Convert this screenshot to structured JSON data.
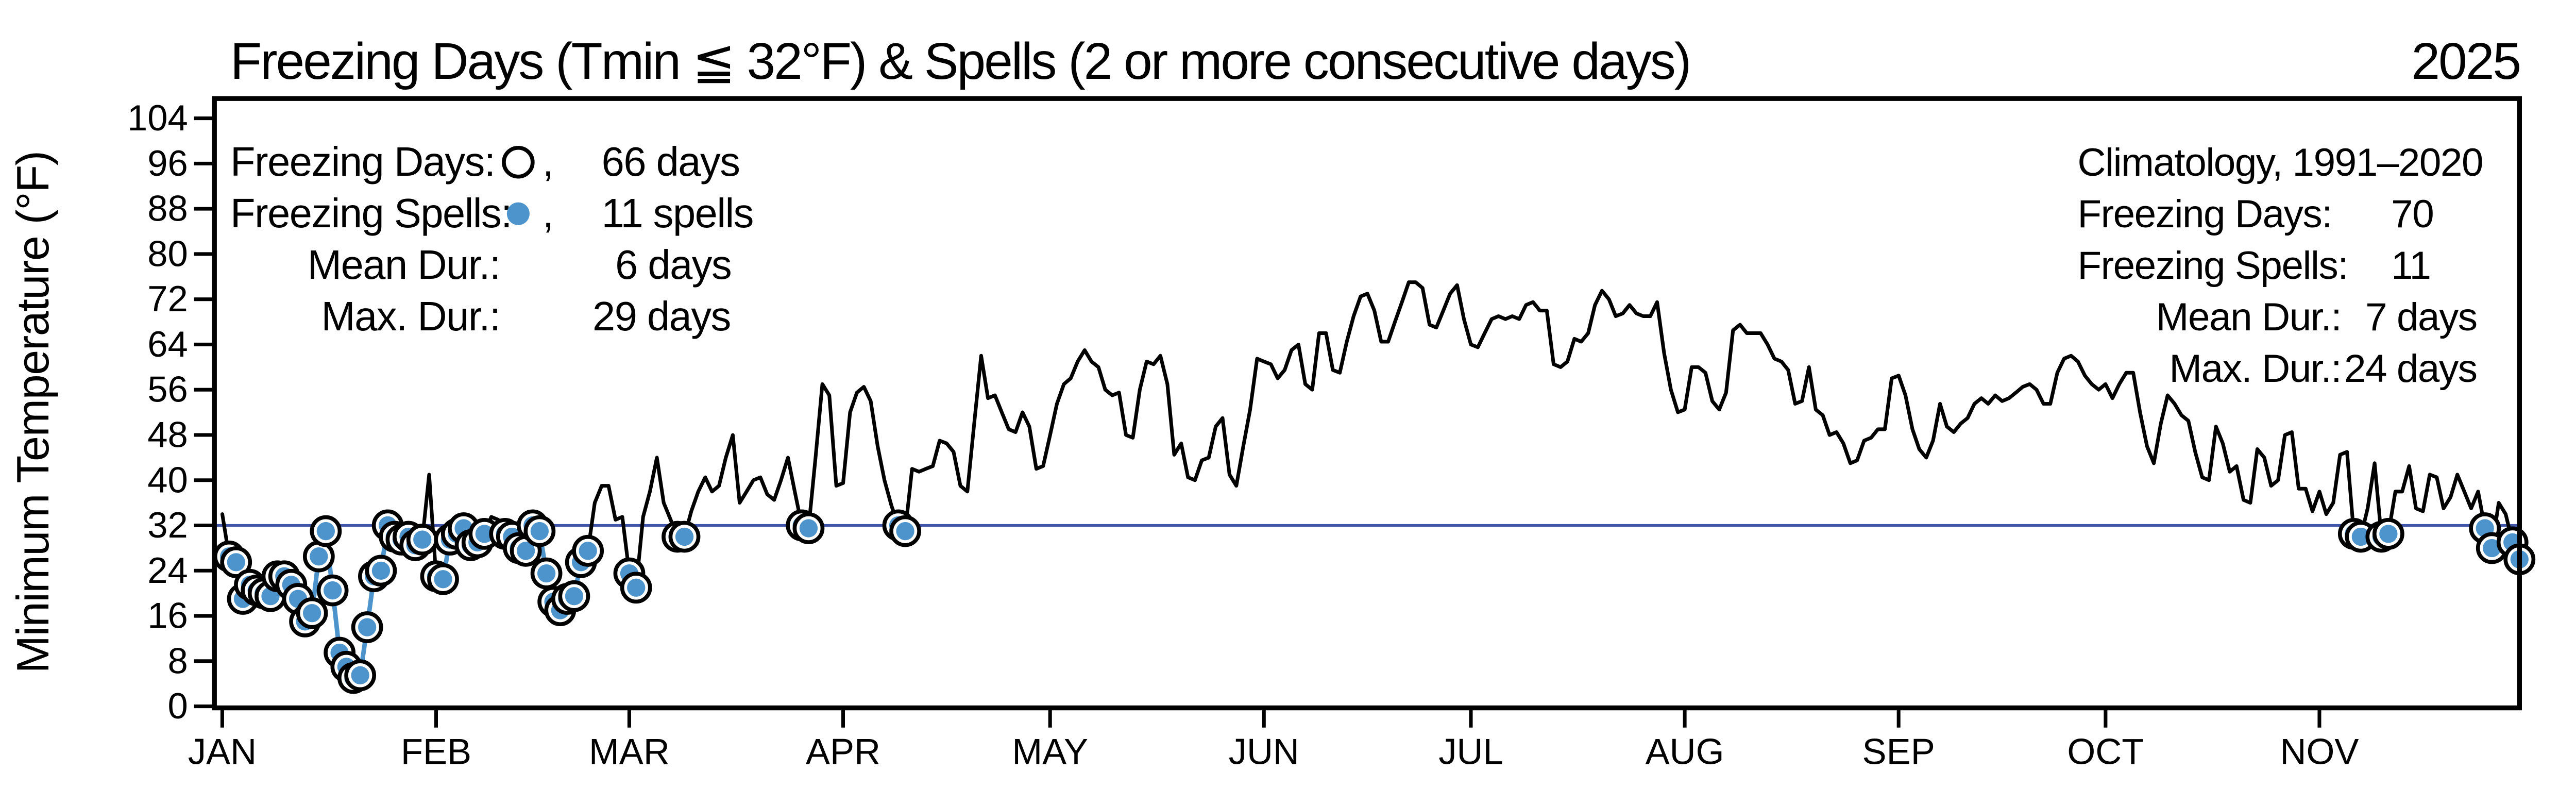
{
  "title": "Freezing Days (Tmin ≦ 32°F) & Spells (2 or more consecutive days)",
  "year": "2025",
  "y_axis": {
    "label": "Minimum Temperature (°F)"
  },
  "legend": {
    "days_label": "Freezing Days:",
    "comma": ",",
    "days_value": "66 days",
    "spells_label": "Freezing Spells:",
    "spells_value": "11 spells",
    "mean_label": "Mean Dur.:",
    "mean_value": "6 days",
    "max_label": "Max. Dur.:",
    "max_value": "29 days"
  },
  "climatology": {
    "title": "Climatology, 1991–2020",
    "days_label": "Freezing Days:",
    "days_value": "70",
    "spells_label": "Freezing Spells:",
    "spells_value": "11",
    "mean_label": "Mean Dur.:",
    "mean_value": "7 days",
    "max_label": "Max. Dur.:",
    "max_value": "24 days"
  },
  "colors": {
    "line": "#000000",
    "spell_marker": "#4d94cc",
    "threshold_line": "#3e55a8",
    "marker_ring": "#000000",
    "marker_fill": "#ffffff"
  },
  "chart_data": {
    "type": "line",
    "title": "Freezing Days (Tmin ≦ 32°F) & Spells (2 or more consecutive days)",
    "year": "2025",
    "ylabel": "Minimum Temperature (°F)",
    "ylim": [
      0,
      104
    ],
    "ytick_step": 8,
    "yticks": [
      0,
      8,
      16,
      24,
      32,
      40,
      48,
      56,
      64,
      72,
      80,
      88,
      96,
      104
    ],
    "grid": false,
    "legend_position": "top-left",
    "freeze_threshold_f": 32,
    "months": [
      "JAN",
      "FEB",
      "MAR",
      "APR",
      "MAY",
      "JUN",
      "JUL",
      "AUG",
      "SEP",
      "OCT",
      "NOV"
    ],
    "month_start_day": [
      0,
      31,
      59,
      90,
      120,
      151,
      181,
      212,
      243,
      273,
      304
    ],
    "n_days": 334,
    "series": [
      {
        "name": "Daily minimum temperature 2025 (°F), Jan 1 – Nov 30",
        "values": [
          34,
          26.5,
          25.5,
          19,
          21.5,
          20.5,
          20,
          19.5,
          23,
          23,
          21.5,
          19,
          15,
          16.5,
          26.5,
          31,
          20.5,
          9.5,
          7,
          5,
          5.5,
          14,
          23,
          24,
          32,
          30,
          29.5,
          30,
          28.5,
          29.5,
          41,
          23,
          22.5,
          29.5,
          30.5,
          31.5,
          28.5,
          29,
          30.5,
          33.5,
          33,
          30.5,
          30,
          28,
          27.5,
          32,
          31,
          23.5,
          18.5,
          17,
          19,
          19.5,
          25.5,
          27.5,
          36,
          39,
          39,
          33,
          33.5,
          23.5,
          21,
          33.5,
          38,
          44,
          36,
          33,
          30,
          30,
          34.5,
          38,
          40.5,
          38,
          39,
          44,
          48,
          36,
          38,
          40,
          40.5,
          37.5,
          36.5,
          40,
          44,
          38,
          32,
          31.5,
          44,
          57,
          55,
          39,
          39.5,
          52,
          55.5,
          56.5,
          54,
          46,
          40,
          35.5,
          32,
          31,
          42,
          41.5,
          42,
          42.5,
          47,
          46.5,
          45,
          39,
          38,
          50,
          62,
          54.5,
          55,
          52,
          49,
          48.5,
          52,
          49.5,
          42,
          42.5,
          48,
          53.5,
          57,
          58,
          61,
          63,
          61,
          60,
          56,
          55,
          55.5,
          48,
          47.5,
          56,
          61,
          60.5,
          62,
          57,
          44.5,
          46.5,
          40.5,
          40,
          43.5,
          44,
          49.5,
          51,
          41,
          39,
          46,
          52.5,
          61.5,
          61,
          60.5,
          58,
          59.5,
          63,
          64,
          57,
          56,
          66,
          66,
          59.5,
          59,
          64.5,
          69,
          72.5,
          73,
          70,
          64.5,
          64.5,
          68,
          71.5,
          75,
          75,
          74,
          67.5,
          67,
          70,
          73,
          74.5,
          68.5,
          64,
          63.5,
          66,
          68.5,
          69,
          68.5,
          69,
          68.5,
          71,
          71.5,
          70,
          70,
          60.5,
          60,
          61,
          65,
          64.5,
          66,
          71,
          73.5,
          72,
          69,
          69.5,
          71,
          69.5,
          69,
          69,
          71.5,
          62.5,
          56,
          52,
          52.5,
          60,
          60,
          59,
          54,
          52.5,
          55.5,
          66.5,
          67.5,
          66,
          66,
          66,
          64,
          61.5,
          61,
          59.5,
          53.5,
          54,
          60,
          52.5,
          51.5,
          48,
          48.5,
          46.5,
          43,
          43.5,
          47,
          47.5,
          49,
          49,
          58,
          58.5,
          55,
          49,
          45.5,
          44,
          47,
          53.5,
          49.5,
          48.5,
          50,
          51,
          53.5,
          54.5,
          53.5,
          55,
          54,
          54.5,
          55.5,
          56.5,
          57,
          56,
          53.5,
          53.5,
          59,
          61.5,
          62,
          61,
          58.5,
          57,
          56,
          57,
          54.5,
          57,
          59,
          59,
          52,
          46,
          43,
          50,
          55,
          53.5,
          51.5,
          50.5,
          45,
          40.5,
          40,
          49.5,
          46.5,
          41.5,
          42.5,
          36.5,
          36,
          45.5,
          44,
          39,
          40,
          48,
          48.5,
          38.5,
          38.5,
          34.5,
          38,
          34,
          36,
          44.5,
          45,
          30.5,
          30,
          35,
          43,
          30,
          30.5,
          38,
          38,
          42.5,
          35,
          34.5,
          41,
          40.5,
          35,
          37,
          41,
          38,
          35,
          38,
          31.5,
          28,
          36,
          34,
          29,
          26
        ]
      }
    ],
    "spells_day_ranges": [
      [
        1,
        29
      ],
      [
        31,
        38
      ],
      [
        41,
        53
      ],
      [
        59,
        60
      ],
      [
        66,
        67
      ],
      [
        84,
        85
      ],
      [
        98,
        99
      ],
      [
        309,
        310
      ],
      [
        313,
        314
      ],
      [
        328,
        329
      ],
      [
        332,
        333
      ]
    ],
    "stats": {
      "freezing_days": 66,
      "freezing_spells": 11,
      "mean_spell_duration_days": 6,
      "max_spell_duration_days": 29
    },
    "climatology": {
      "period": "1991–2020",
      "freezing_days": 70,
      "freezing_spells": 11,
      "mean_spell_duration_days": 7,
      "max_spell_duration_days": 24
    }
  }
}
